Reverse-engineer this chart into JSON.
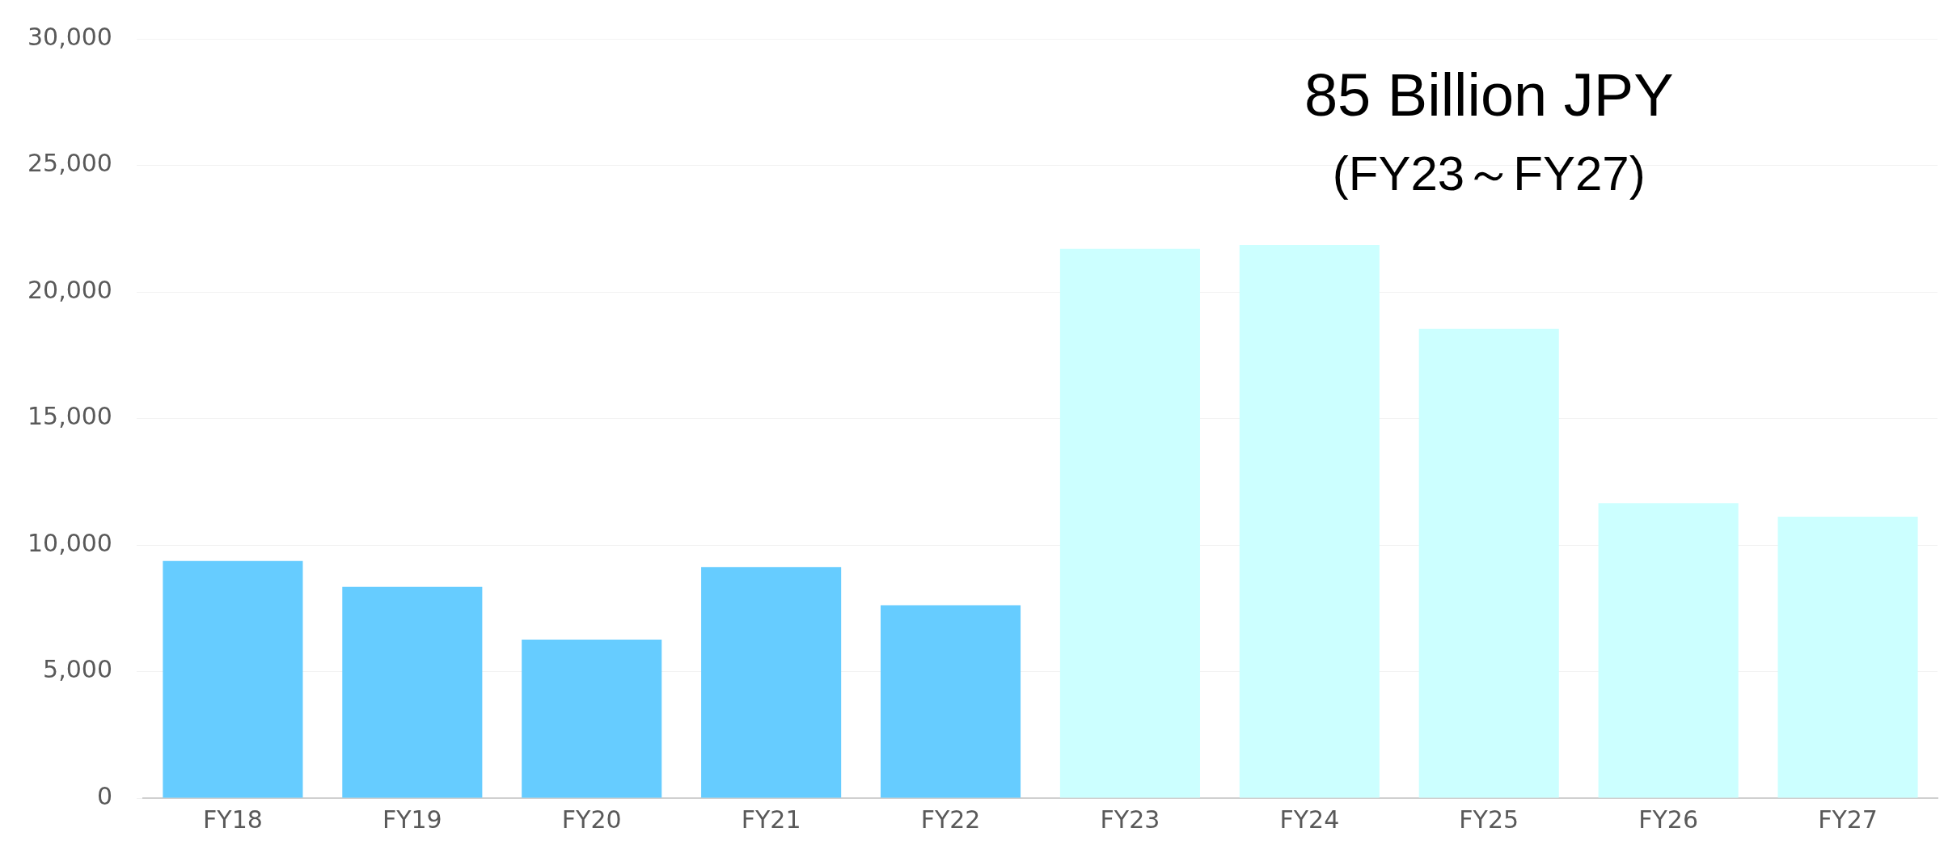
{
  "chart_data": {
    "type": "bar",
    "categories": [
      "FY18",
      "FY19",
      "FY20",
      "FY21",
      "FY22",
      "FY23",
      "FY24",
      "FY25",
      "FY26",
      "FY27"
    ],
    "values": [
      9370,
      8350,
      6260,
      9130,
      7620,
      21700,
      21850,
      18540,
      11650,
      11120
    ],
    "colors": [
      "#66ccff",
      "#66ccff",
      "#66ccff",
      "#66ccff",
      "#66ccff",
      "#ccffff",
      "#ccffff",
      "#ccffff",
      "#ccffff",
      "#ccffff"
    ],
    "ylim": [
      0,
      30000
    ],
    "yticks": [
      {
        "value": 0,
        "label": "0"
      },
      {
        "value": 5000,
        "label": "5,000"
      },
      {
        "value": 10000,
        "label": "10,000"
      },
      {
        "value": 15000,
        "label": "15,000"
      },
      {
        "value": 20000,
        "label": "20,000"
      },
      {
        "value": 25000,
        "label": "25,000"
      },
      {
        "value": 30000,
        "label": "30,000"
      }
    ],
    "grid": "y",
    "annotations": [
      "85 Billion JPY",
      "(FY23～FY27)"
    ]
  }
}
